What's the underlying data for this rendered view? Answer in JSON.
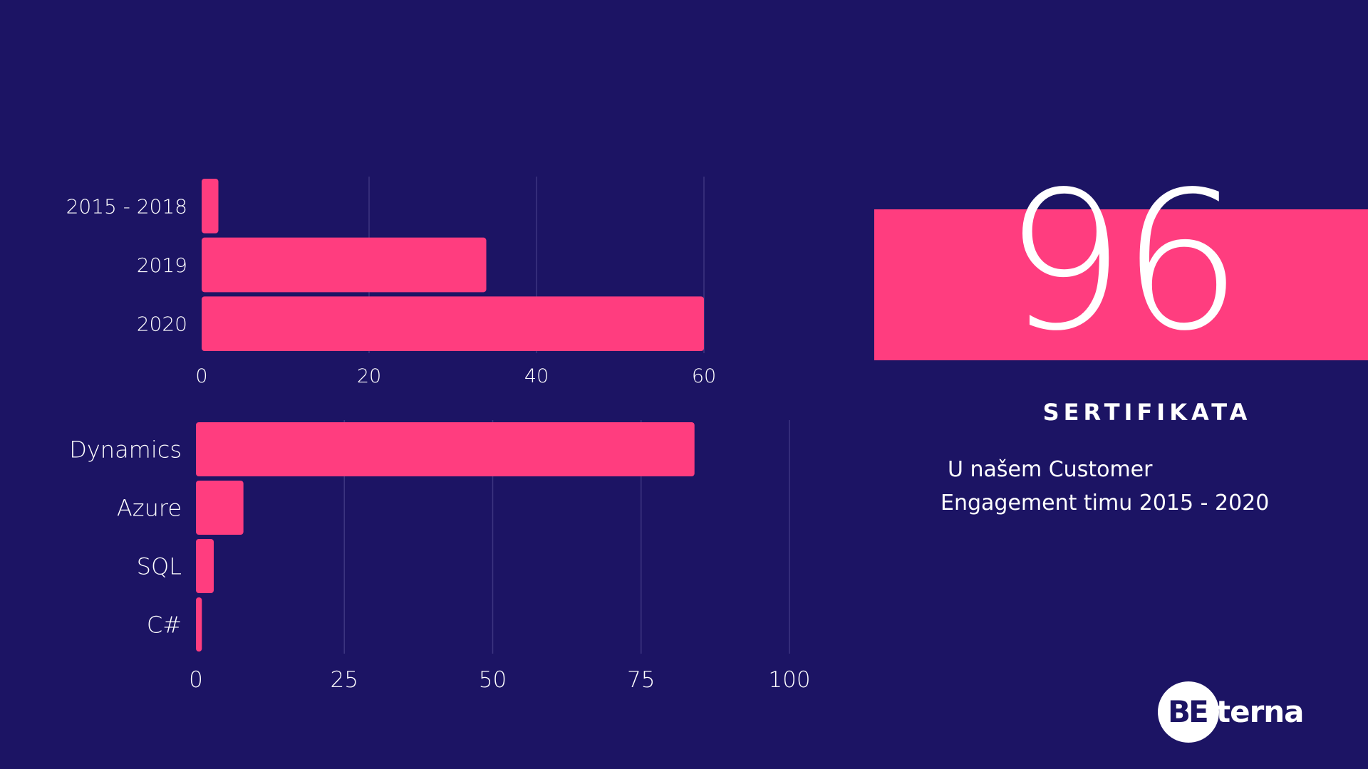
{
  "colors": {
    "background": "#1c1464",
    "accent": "#ff3d7f",
    "text": "#ffffff",
    "gridline": "#3c3580"
  },
  "headline": {
    "number": "96",
    "label": "SERTIFIKATA",
    "description_line1": "U našem Customer",
    "description_line2": "Engagement timu 2015 - 2020"
  },
  "logo": {
    "part1": "BE",
    "part2": "terna"
  },
  "chart_data": [
    {
      "type": "bar",
      "orientation": "horizontal",
      "categories": [
        "2015 - 2018",
        "2019",
        "2020"
      ],
      "values": [
        2,
        34,
        60
      ],
      "xlim": [
        0,
        60
      ],
      "xticks": [
        "0",
        "20",
        "40",
        "60"
      ],
      "grid": true
    },
    {
      "type": "bar",
      "orientation": "horizontal",
      "categories": [
        "Dynamics",
        "Azure",
        "SQL",
        "C#"
      ],
      "values": [
        84,
        8,
        3,
        1
      ],
      "xlim": [
        0,
        100
      ],
      "xticks": [
        "0",
        "25",
        "50",
        "75",
        "100"
      ],
      "grid": true
    }
  ]
}
